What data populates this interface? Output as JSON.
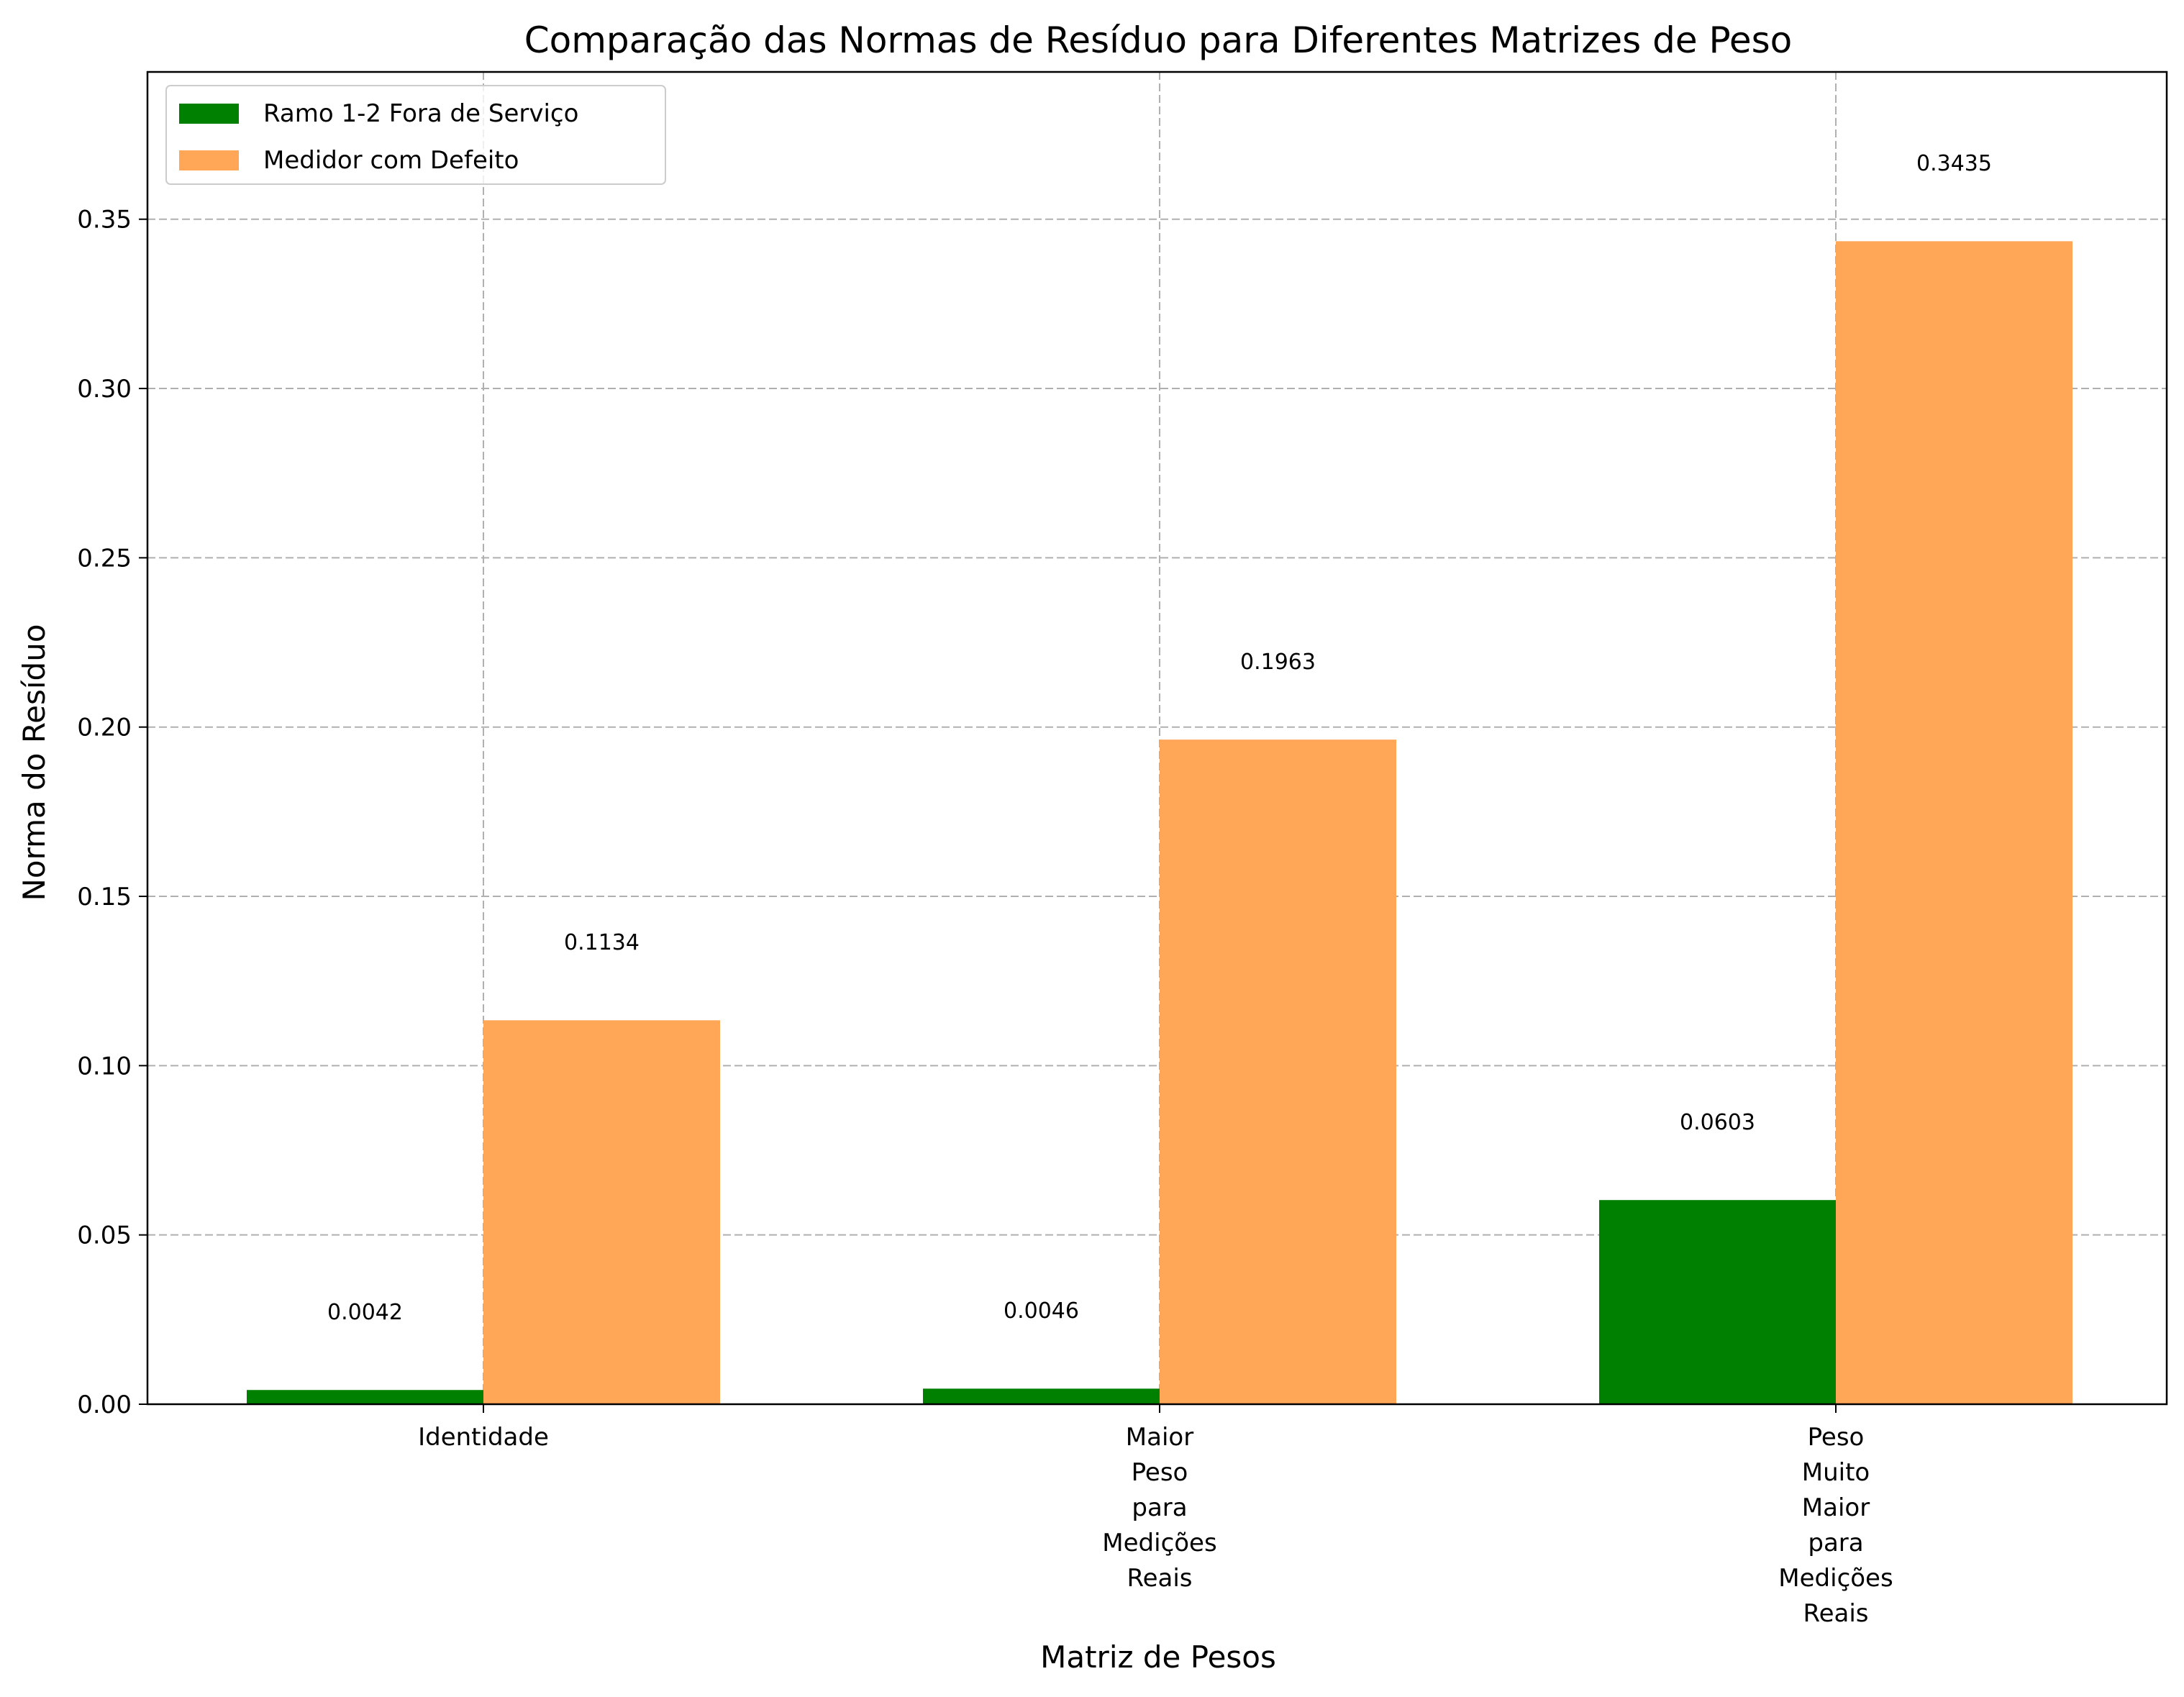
{
  "chart_data": {
    "type": "bar",
    "title": "Comparação das Normas de Resíduo para Diferentes Matrizes de Peso",
    "xlabel": "Matriz de Pesos",
    "ylabel": "Norma do Resíduo",
    "categories": [
      [
        "Identidade"
      ],
      [
        "Maior",
        "Peso",
        "para",
        "Medições",
        "Reais"
      ],
      [
        "Peso",
        "Muito",
        "Maior",
        "para",
        "Medições",
        "Reais"
      ]
    ],
    "series": [
      {
        "name": "Ramo 1-2 Fora de Serviço",
        "values": [
          0.0042,
          0.0046,
          0.0603
        ],
        "labels": [
          "0.0042",
          "0.0046",
          "0.0603"
        ],
        "color": "#008000"
      },
      {
        "name": "Medidor com Defeito",
        "values": [
          0.1134,
          0.1963,
          0.3435
        ],
        "labels": [
          "0.1134",
          "0.1963",
          "0.3435"
        ],
        "color": "#ffa657"
      }
    ],
    "ylim": [
      0,
      0.3935
    ],
    "yticks": [
      "0.00",
      "0.05",
      "0.10",
      "0.15",
      "0.20",
      "0.25",
      "0.30",
      "0.35"
    ],
    "ytick_values": [
      0,
      0.05,
      0.1,
      0.15,
      0.2,
      0.25,
      0.3,
      0.35
    ],
    "grid": true,
    "legend": "top-left"
  }
}
